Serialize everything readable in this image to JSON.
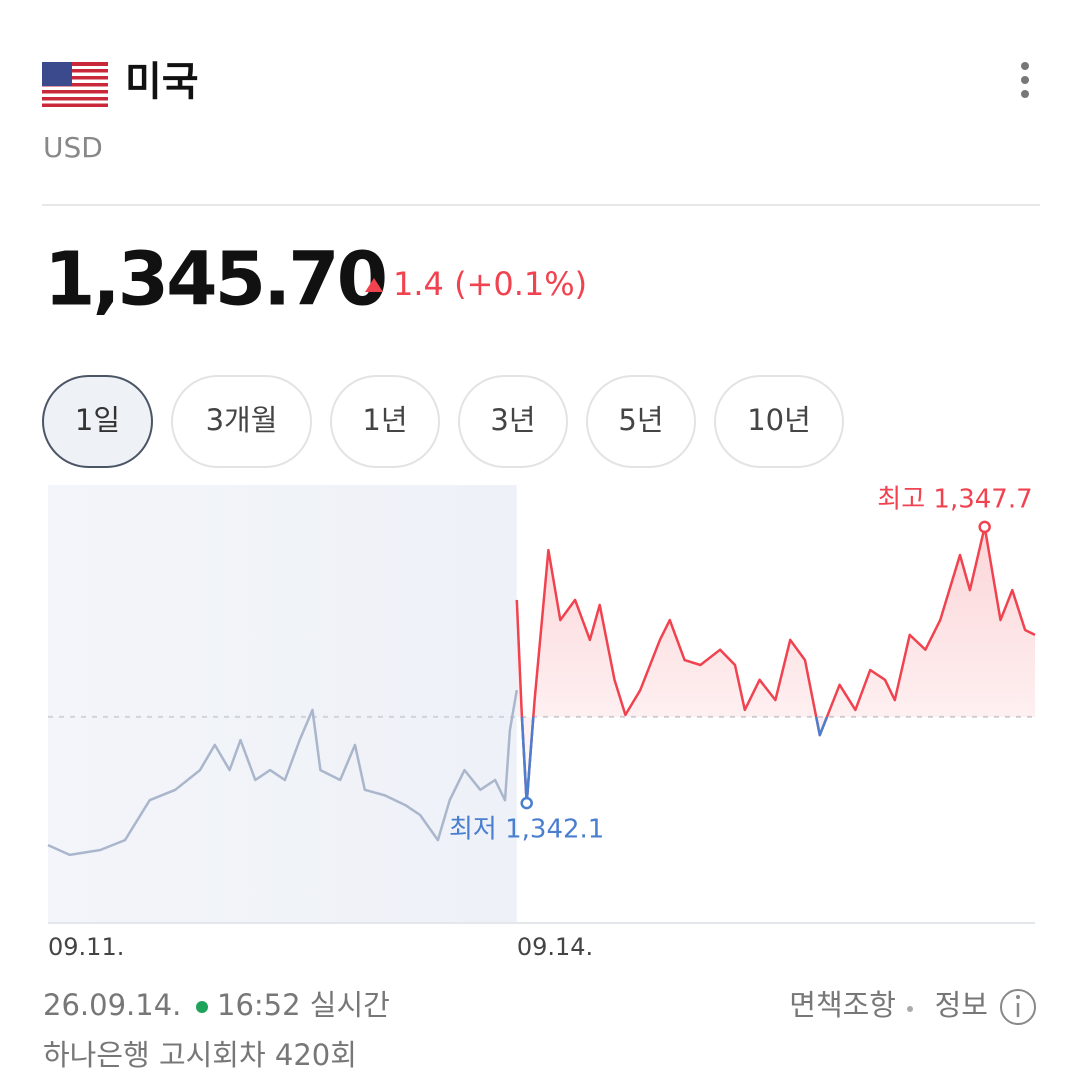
{
  "header": {
    "title": "미국",
    "currency": "USD"
  },
  "quote": {
    "price": "1,345.70",
    "change": "1.4 (+0.1%)"
  },
  "tabs": [
    "1일",
    "3개월",
    "1년",
    "3년",
    "5년",
    "10년"
  ],
  "chart_data": {
    "type": "line",
    "xlim": [
      0,
      100
    ],
    "ylim": [
      1339.67,
      1348.55
    ],
    "xticks": [
      {
        "value": 0,
        "label": "09.11."
      },
      {
        "value": 47.5,
        "label": "09.14."
      }
    ],
    "reference": 1343.85,
    "series": [
      {
        "color": "#aab6cb",
        "x": [
          0,
          2.2,
          5.3,
          7.8,
          10.3,
          12.9,
          15.4,
          16.9,
          18.4,
          19.5,
          21.0,
          22.5,
          24.0,
          25.5,
          26.8,
          27.6,
          29.6,
          31.1,
          32.1,
          34.1,
          36.2,
          37.7,
          39.5,
          40.7,
          42.2,
          43.8,
          45.3,
          46.3,
          46.8,
          47.5
        ],
        "values": [
          1341.25,
          1341.05,
          1341.15,
          1341.35,
          1342.16,
          1342.37,
          1342.77,
          1343.28,
          1342.77,
          1343.38,
          1342.57,
          1342.77,
          1342.57,
          1343.38,
          1343.99,
          1342.77,
          1342.57,
          1343.28,
          1342.37,
          1342.26,
          1342.06,
          1341.86,
          1341.35,
          1342.16,
          1342.77,
          1342.37,
          1342.57,
          1342.16,
          1343.58,
          1344.39
        ]
      },
      {
        "color": "#f0424f",
        "below_color": "#4a7fd0",
        "x": [
          47.5,
          48.0,
          48.5,
          49.3,
          50.7,
          51.9,
          53.4,
          54.9,
          55.9,
          57.4,
          58.5,
          60.0,
          62.0,
          63.0,
          64.5,
          66.1,
          68.1,
          69.6,
          70.6,
          72.1,
          73.7,
          75.2,
          76.7,
          78.2,
          80.2,
          81.8,
          83.3,
          84.8,
          85.8,
          87.3,
          88.9,
          90.4,
          92.4,
          93.4,
          94.9,
          96.5,
          97.7,
          99.0,
          100
        ],
        "values": [
          1346.22,
          1343.89,
          1342.1,
          1344.19,
          1347.23,
          1345.81,
          1346.22,
          1345.41,
          1346.12,
          1344.6,
          1343.89,
          1344.39,
          1345.41,
          1345.81,
          1345.0,
          1344.9,
          1345.21,
          1344.9,
          1343.99,
          1344.6,
          1344.19,
          1345.41,
          1345.0,
          1343.48,
          1344.5,
          1343.99,
          1344.8,
          1344.6,
          1344.19,
          1345.51,
          1345.21,
          1345.81,
          1347.13,
          1346.42,
          1347.7,
          1345.81,
          1346.42,
          1345.61,
          1345.51
        ]
      }
    ],
    "annotations": [
      {
        "text": "최고 1,347.7",
        "x": 94.9,
        "y": 1347.7,
        "color": "#f0424f",
        "side": "above"
      },
      {
        "text": "최저 1,342.1",
        "x": 48.5,
        "y": 1342.1,
        "color": "#4a7fd0",
        "side": "below"
      }
    ]
  },
  "footer": {
    "date": "26.09.14.",
    "time": "16:52 실시간",
    "notice": "하나은행 고시회차 420회",
    "disclaimer": "면책조항",
    "info": "정보"
  }
}
